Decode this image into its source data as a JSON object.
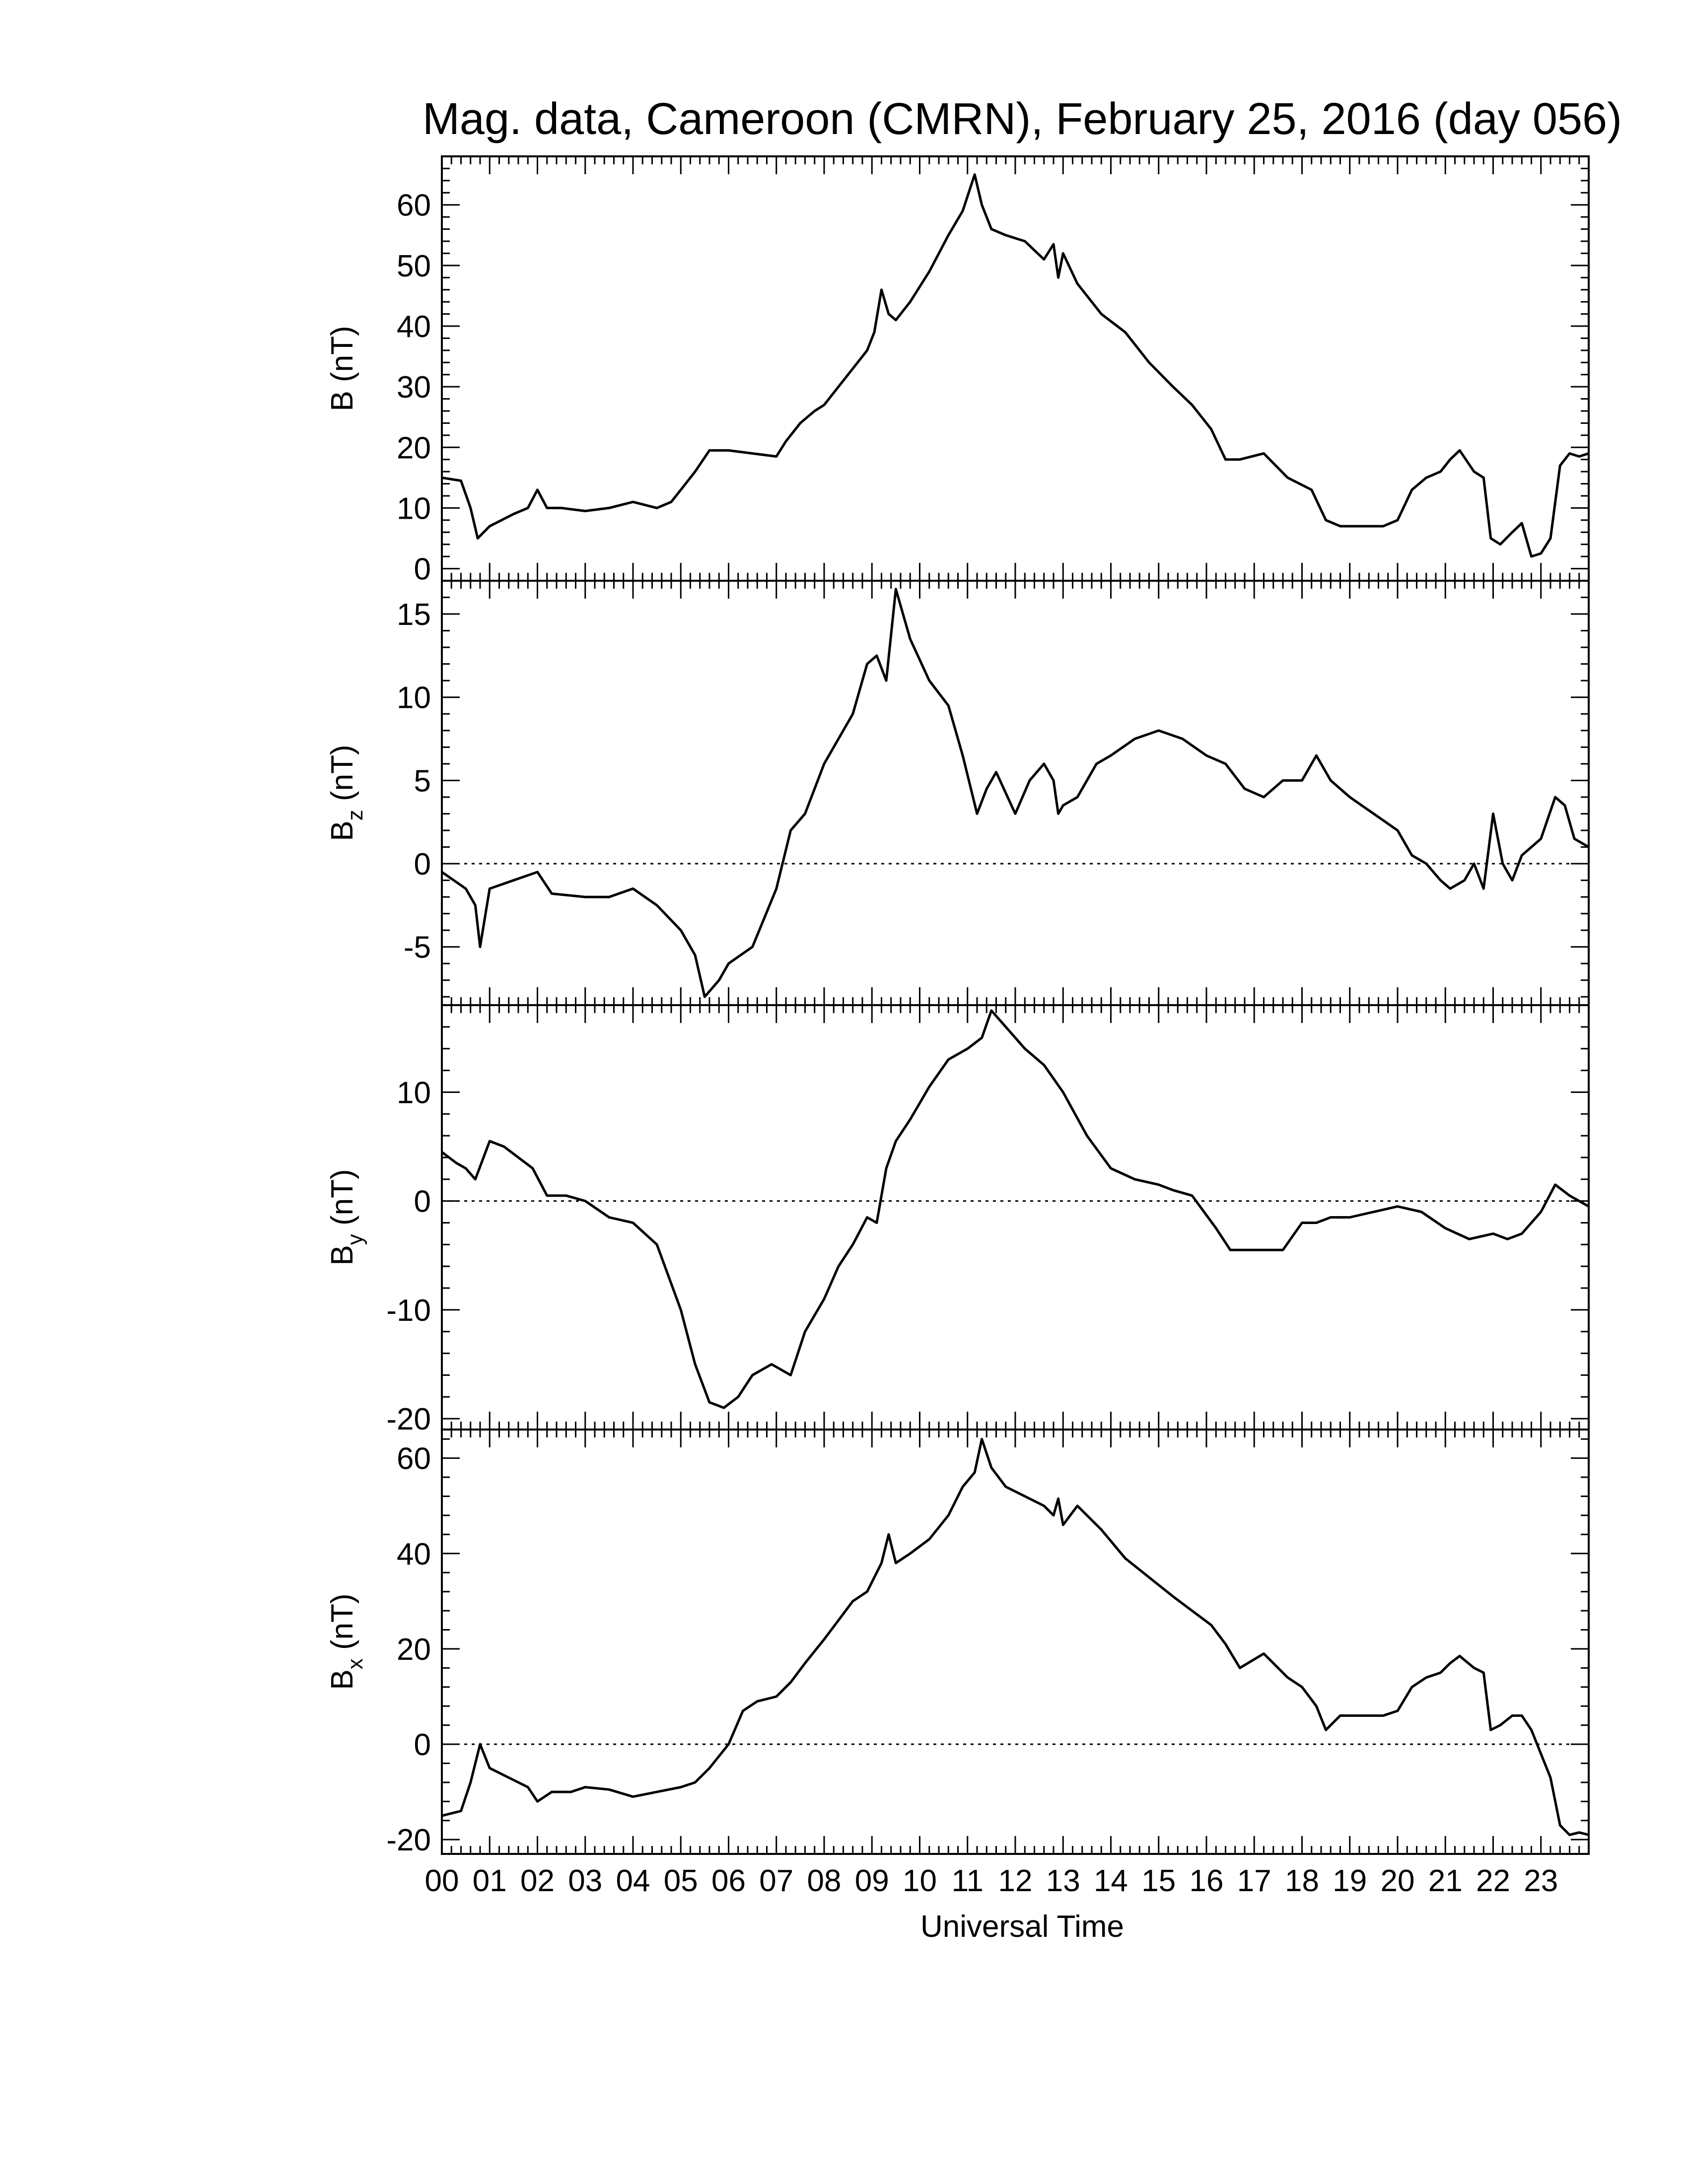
{
  "title": "Mag. data, Cameroon (CMRN), February 25, 2016 (day 056)",
  "xlabel": "Universal Time",
  "colors": {
    "line": "#000000",
    "background": "#ffffff",
    "zero_line": "#000000"
  },
  "chart_data": [
    {
      "type": "line",
      "ylabel": "B (nT)",
      "ylabel_base": "B",
      "ylabel_sub": "",
      "ylabel_unit": "(nT)",
      "ylim": [
        -2,
        68
      ],
      "yticks": [
        0,
        10,
        20,
        30,
        40,
        50,
        60
      ],
      "ytick_labels": [
        "0",
        "10",
        "20",
        "30",
        "40",
        "50",
        "60"
      ],
      "zero_line": false,
      "x": [
        0,
        0.4,
        0.6,
        0.75,
        1.0,
        1.5,
        1.8,
        2.0,
        2.2,
        2.5,
        3.0,
        3.5,
        4.0,
        4.5,
        4.8,
        5.0,
        5.3,
        5.6,
        6.0,
        6.5,
        7.0,
        7.2,
        7.5,
        7.8,
        8.0,
        8.3,
        8.6,
        8.9,
        9.05,
        9.2,
        9.35,
        9.5,
        9.8,
        10.2,
        10.6,
        10.9,
        11.15,
        11.3,
        11.5,
        11.8,
        12.2,
        12.6,
        12.8,
        12.9,
        13.0,
        13.3,
        13.8,
        14.3,
        14.8,
        15.3,
        15.7,
        16.1,
        16.4,
        16.7,
        17.2,
        17.7,
        18.2,
        18.5,
        18.8,
        19.3,
        19.7,
        20.0,
        20.3,
        20.6,
        20.9,
        21.1,
        21.3,
        21.6,
        21.8,
        21.95,
        22.15,
        22.4,
        22.6,
        22.8,
        23.0,
        23.2,
        23.4,
        23.6,
        23.8,
        24.0
      ],
      "values": [
        15,
        14.5,
        10,
        5,
        7,
        9,
        10,
        13,
        10,
        10,
        9.5,
        10,
        11,
        10,
        11,
        13,
        16,
        19.5,
        19.5,
        19,
        18.5,
        21,
        24,
        26,
        27,
        30,
        33,
        36,
        39,
        46,
        42,
        41,
        44,
        49,
        55,
        59,
        65,
        60,
        56,
        55,
        54,
        51,
        53.5,
        48,
        52,
        47,
        42,
        39,
        34,
        30,
        27,
        23,
        18,
        18,
        19,
        15,
        13,
        8,
        7,
        7,
        7,
        8,
        13,
        15,
        16,
        18,
        19.5,
        16,
        15,
        5,
        4,
        6,
        7.5,
        2,
        2.5,
        5,
        17,
        19,
        18.5,
        19
      ]
    },
    {
      "type": "line",
      "ylabel": "Bz (nT)",
      "ylabel_base": "B",
      "ylabel_sub": "z",
      "ylabel_unit": "(nT)",
      "ylim": [
        -8.5,
        17
      ],
      "yticks": [
        -5,
        0,
        5,
        10,
        15
      ],
      "ytick_labels": [
        "-5",
        "0",
        "5",
        "10",
        "15"
      ],
      "zero_line": true,
      "x": [
        0,
        0.5,
        0.7,
        0.8,
        1.0,
        1.5,
        2.0,
        2.3,
        3.0,
        3.5,
        4.0,
        4.5,
        5.0,
        5.3,
        5.5,
        5.8,
        6.0,
        6.5,
        7.0,
        7.3,
        7.6,
        8.0,
        8.3,
        8.6,
        8.9,
        9.1,
        9.3,
        9.5,
        9.8,
        10.2,
        10.6,
        10.9,
        11.2,
        11.4,
        11.6,
        12.0,
        12.3,
        12.6,
        12.8,
        12.9,
        13.0,
        13.3,
        13.7,
        14.0,
        14.5,
        15.0,
        15.5,
        16.0,
        16.4,
        16.8,
        17.2,
        17.6,
        18.0,
        18.3,
        18.6,
        19.0,
        19.5,
        20.0,
        20.3,
        20.6,
        20.9,
        21.1,
        21.4,
        21.6,
        21.8,
        22.0,
        22.2,
        22.4,
        22.6,
        23.0,
        23.3,
        23.5,
        23.7,
        24.0
      ],
      "values": [
        -0.5,
        -1.5,
        -2.5,
        -5,
        -1.5,
        -1,
        -0.5,
        -1.8,
        -2,
        -2,
        -1.5,
        -2.5,
        -4,
        -5.5,
        -8,
        -7,
        -6,
        -5,
        -1.5,
        2,
        3,
        6,
        7.5,
        9,
        12,
        12.5,
        11,
        16.5,
        13.5,
        11,
        9.5,
        6.5,
        3,
        4.5,
        5.5,
        3,
        5,
        6,
        5,
        3,
        3.5,
        4,
        6,
        6.5,
        7.5,
        8,
        7.5,
        6.5,
        6,
        4.5,
        4,
        5,
        5,
        6.5,
        5,
        4,
        3,
        2,
        0.5,
        0,
        -1,
        -1.5,
        -1,
        0,
        -1.5,
        3,
        0,
        -1,
        0.5,
        1.5,
        4,
        3.5,
        1.5,
        1
      ]
    },
    {
      "type": "line",
      "ylabel": "By (nT)",
      "ylabel_base": "B",
      "ylabel_sub": "y",
      "ylabel_unit": "(nT)",
      "ylim": [
        -21,
        18
      ],
      "yticks": [
        -20,
        -10,
        0,
        10
      ],
      "ytick_labels": [
        "-20",
        "-10",
        "0",
        "10"
      ],
      "zero_line": true,
      "x": [
        0,
        0.3,
        0.5,
        0.7,
        1.0,
        1.3,
        1.6,
        1.9,
        2.2,
        2.6,
        3.0,
        3.5,
        4.0,
        4.5,
        5.0,
        5.3,
        5.6,
        5.9,
        6.2,
        6.5,
        6.9,
        7.3,
        7.6,
        8.0,
        8.3,
        8.6,
        8.9,
        9.1,
        9.3,
        9.5,
        9.8,
        10.2,
        10.6,
        11.0,
        11.3,
        11.5,
        11.8,
        12.2,
        12.6,
        13.0,
        13.5,
        14.0,
        14.5,
        15.0,
        15.3,
        15.7,
        16.2,
        16.5,
        16.8,
        17.2,
        17.6,
        18.0,
        18.3,
        18.6,
        19.0,
        19.5,
        20.0,
        20.5,
        21.0,
        21.5,
        22.0,
        22.3,
        22.6,
        23.0,
        23.3,
        23.6,
        24.0
      ],
      "values": [
        4.5,
        3.5,
        3,
        2,
        5.5,
        5,
        4,
        3,
        0.5,
        0.5,
        0,
        -1.5,
        -2,
        -4,
        -10,
        -15,
        -18.5,
        -19,
        -18,
        -16,
        -15,
        -16,
        -12,
        -9,
        -6,
        -4,
        -1.5,
        -2,
        3,
        5.5,
        7.5,
        10.5,
        13,
        14,
        15,
        17.5,
        16,
        14,
        12.5,
        10,
        6,
        3,
        2,
        1.5,
        1,
        0.5,
        -2.5,
        -4.5,
        -4.5,
        -4.5,
        -4.5,
        -2,
        -2,
        -1.5,
        -1.5,
        -1,
        -0.5,
        -1,
        -2.5,
        -3.5,
        -3,
        -3.5,
        -3,
        -1,
        1.5,
        0.5,
        -0.5
      ]
    },
    {
      "type": "line",
      "ylabel": "Bx (nT)",
      "ylabel_base": "B",
      "ylabel_sub": "x",
      "ylabel_unit": "(nT)",
      "ylim": [
        -23,
        66
      ],
      "yticks": [
        -20,
        0,
        20,
        40,
        60
      ],
      "ytick_labels": [
        "-20",
        "0",
        "20",
        "40",
        "60"
      ],
      "zero_line": true,
      "x": [
        0,
        0.4,
        0.6,
        0.8,
        1.0,
        1.4,
        1.8,
        2.0,
        2.3,
        2.7,
        3.0,
        3.5,
        4.0,
        4.5,
        5.0,
        5.3,
        5.6,
        6.0,
        6.3,
        6.6,
        7.0,
        7.3,
        7.6,
        8.0,
        8.3,
        8.6,
        8.9,
        9.05,
        9.2,
        9.35,
        9.5,
        9.8,
        10.2,
        10.6,
        10.9,
        11.15,
        11.3,
        11.5,
        11.8,
        12.2,
        12.6,
        12.8,
        12.9,
        13.0,
        13.3,
        13.8,
        14.3,
        14.8,
        15.3,
        15.7,
        16.1,
        16.4,
        16.7,
        17.2,
        17.7,
        18.0,
        18.3,
        18.5,
        18.8,
        19.3,
        19.7,
        20.0,
        20.3,
        20.6,
        20.9,
        21.1,
        21.3,
        21.6,
        21.8,
        21.95,
        22.15,
        22.4,
        22.6,
        22.8,
        23.0,
        23.2,
        23.4,
        23.6,
        23.8,
        24.0
      ],
      "values": [
        -15,
        -14,
        -8,
        0,
        -5,
        -7,
        -9,
        -12,
        -10,
        -10,
        -9,
        -9.5,
        -11,
        -10,
        -9,
        -8,
        -5,
        0,
        7,
        9,
        10,
        13,
        17,
        22,
        26,
        30,
        32,
        35,
        38,
        44,
        38,
        40,
        43,
        48,
        54,
        57,
        64,
        58,
        54,
        52,
        50,
        48,
        51.5,
        46,
        50,
        45,
        39,
        35,
        31,
        28,
        25,
        21,
        16,
        19,
        14,
        12,
        8,
        3,
        6,
        6,
        6,
        7,
        12,
        14,
        15,
        17,
        18.5,
        16,
        15,
        3,
        4,
        6,
        6,
        3,
        -2,
        -7,
        -17,
        -19,
        -18.5,
        -19
      ]
    }
  ],
  "xaxis": {
    "range": [
      0,
      24
    ],
    "tick_labels": [
      "00",
      "01",
      "02",
      "03",
      "04",
      "05",
      "06",
      "07",
      "08",
      "09",
      "10",
      "11",
      "12",
      "13",
      "14",
      "15",
      "16",
      "17",
      "18",
      "19",
      "20",
      "21",
      "22",
      "23"
    ]
  }
}
